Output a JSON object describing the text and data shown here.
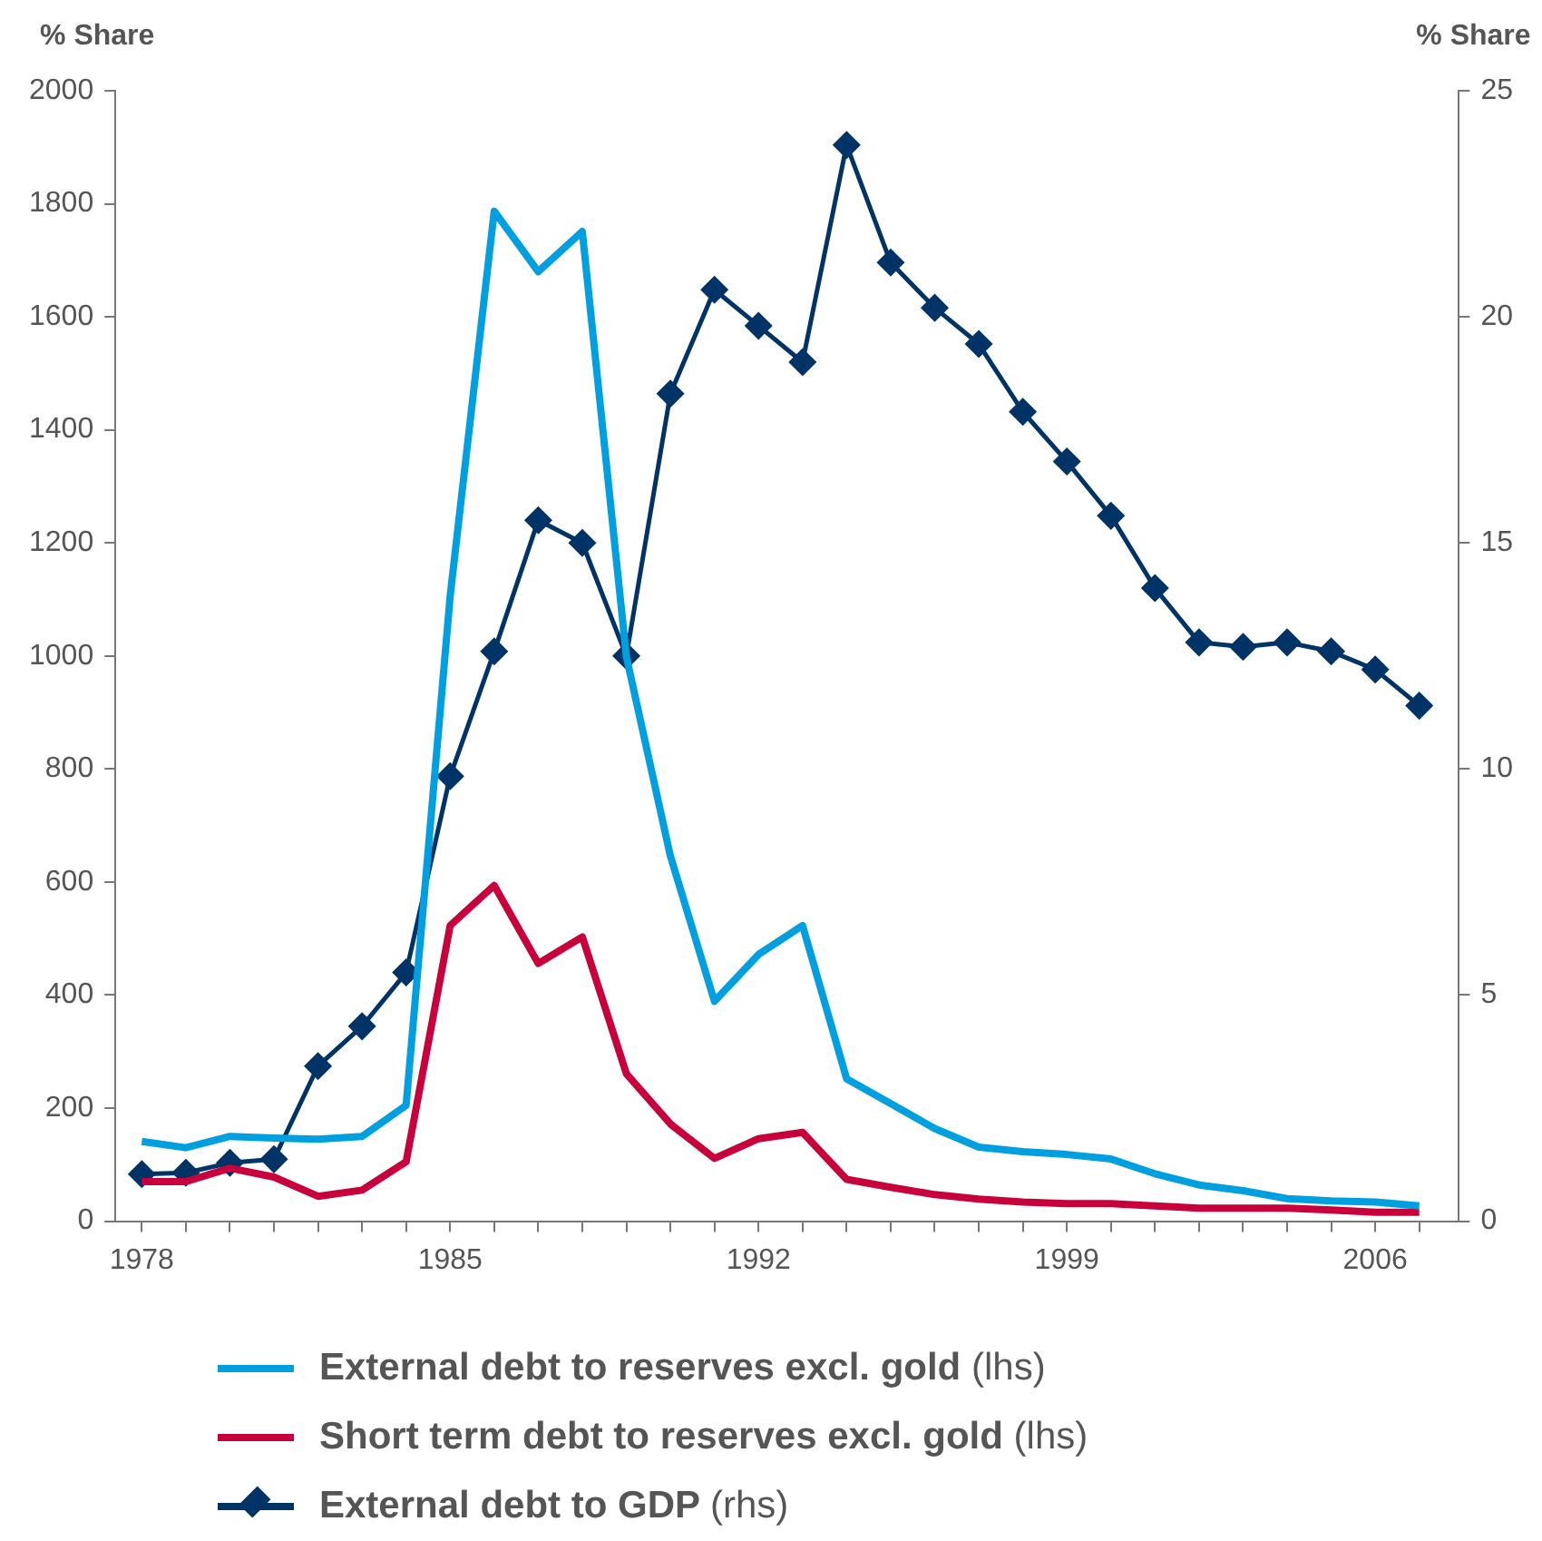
{
  "chart_data": {
    "type": "line",
    "ylabel": "% Share",
    "y2label": "% Share",
    "x": [
      1978,
      1979,
      1980,
      1981,
      1982,
      1983,
      1984,
      1985,
      1986,
      1987,
      1988,
      1989,
      1990,
      1991,
      1992,
      1993,
      1994,
      1995,
      1996,
      1997,
      1998,
      1999,
      2000,
      2001,
      2002,
      2003,
      2004,
      2005,
      2006,
      2007
    ],
    "xlim": [
      1977.4,
      2007.9
    ],
    "xticks": [
      1978,
      {
        "value": 1979,
        "label": null
      },
      {
        "value": 1980,
        "label": null
      },
      {
        "value": 1981,
        "label": null
      },
      {
        "value": 1982,
        "label": null
      },
      {
        "value": 1983,
        "label": null
      },
      {
        "value": 1984,
        "label": null
      },
      1985,
      {
        "value": 1986,
        "label": null
      },
      {
        "value": 1987,
        "label": null
      },
      {
        "value": 1988,
        "label": null
      },
      {
        "value": 1989,
        "label": null
      },
      {
        "value": 1990,
        "label": null
      },
      {
        "value": 1991,
        "label": null
      },
      1992,
      {
        "value": 1993,
        "label": null
      },
      {
        "value": 1994,
        "label": null
      },
      {
        "value": 1995,
        "label": null
      },
      {
        "value": 1996,
        "label": null
      },
      {
        "value": 1997,
        "label": null
      },
      {
        "value": 1998,
        "label": null
      },
      1999,
      {
        "value": 2000,
        "label": null
      },
      {
        "value": 2001,
        "label": null
      },
      {
        "value": 2002,
        "label": null
      },
      {
        "value": 2003,
        "label": null
      },
      {
        "value": 2004,
        "label": null
      },
      {
        "value": 2005,
        "label": null
      },
      2006,
      {
        "value": 2007,
        "label": null
      }
    ],
    "ylim": [
      0,
      2000
    ],
    "yticks": [
      0,
      200,
      400,
      600,
      800,
      1000,
      1200,
      1400,
      1600,
      1800,
      2000
    ],
    "y2lim": [
      0,
      25
    ],
    "y2ticks": [
      0,
      5,
      10,
      15,
      20,
      25
    ],
    "grid": false,
    "legend": "bottom",
    "marker": "none",
    "line_style": "solid",
    "series": [
      {
        "name": "External debt to reserves excl. gold (lhs)",
        "color": "#00a0e0",
        "values": [
          141,
          130,
          150,
          147,
          145,
          150,
          205,
          1106,
          1787,
          1680,
          1751,
          999,
          646,
          389,
          472,
          523,
          252,
          208,
          164,
          131,
          123,
          118,
          110,
          84,
          64,
          54,
          40,
          36,
          34,
          27
        ]
      },
      {
        "name": "Short term debt to reserves excl. gold (lhs)",
        "color": "#c8003c",
        "values": [
          70,
          70,
          94,
          78,
          44,
          55,
          105,
          523,
          594,
          456,
          503,
          261,
          172,
          111,
          146,
          157,
          74,
          60,
          47,
          39,
          34,
          31,
          31,
          27,
          23,
          23,
          23,
          20,
          16,
          16
        ]
      },
      {
        "name": "External debt to GDP (rhs)",
        "color": "#003366",
        "axis": "y2",
        "marker": "diamond",
        "values": [
          1.04,
          1.07,
          1.29,
          1.37,
          3.43,
          4.31,
          5.5,
          9.84,
          12.6,
          15.5,
          15.0,
          12.5,
          18.3,
          20.6,
          19.8,
          19.0,
          23.8,
          21.2,
          20.2,
          19.4,
          17.9,
          16.8,
          15.6,
          14.0,
          12.8,
          12.7,
          12.8,
          12.6,
          12.2,
          11.4
        ]
      }
    ]
  }
}
